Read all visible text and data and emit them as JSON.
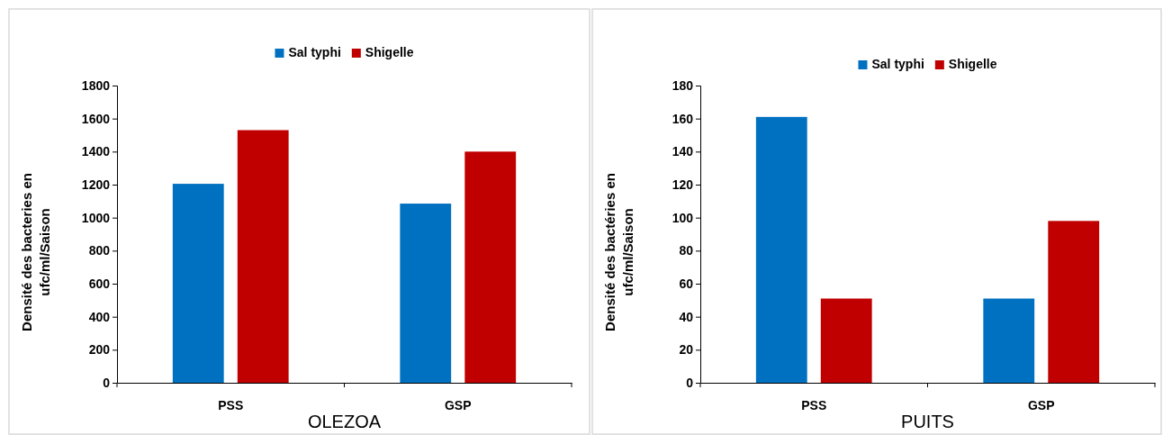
{
  "chart_data": [
    {
      "type": "bar",
      "xlabel": "OLEZOA",
      "ylabel": "Densité des bacteries en ufc/ml/Saison",
      "categories": [
        "PSS",
        "GSP"
      ],
      "series": [
        {
          "name": "Sal typhi",
          "color": "#0070c0",
          "values": [
            1205,
            1085
          ]
        },
        {
          "name": "Shigelle",
          "color": "#c00000",
          "values": [
            1530,
            1400
          ]
        }
      ],
      "ylim": [
        0,
        1800
      ],
      "yticks": [
        0,
        200,
        400,
        600,
        800,
        1000,
        1200,
        1400,
        1600,
        1800
      ],
      "grid": false,
      "legend": "top"
    },
    {
      "type": "bar",
      "xlabel": "PUITS",
      "ylabel": "Densité des bactéries en ufc/ml/Saison",
      "categories": [
        "PSS",
        "GSP"
      ],
      "series": [
        {
          "name": "Sal typhi",
          "color": "#0070c0",
          "values": [
            161,
            51
          ]
        },
        {
          "name": "Shigelle",
          "color": "#c00000",
          "values": [
            51,
            98
          ]
        }
      ],
      "ylim": [
        0,
        180
      ],
      "yticks": [
        0,
        20,
        40,
        60,
        80,
        100,
        120,
        140,
        160,
        180
      ],
      "grid": false,
      "legend": "top"
    }
  ]
}
